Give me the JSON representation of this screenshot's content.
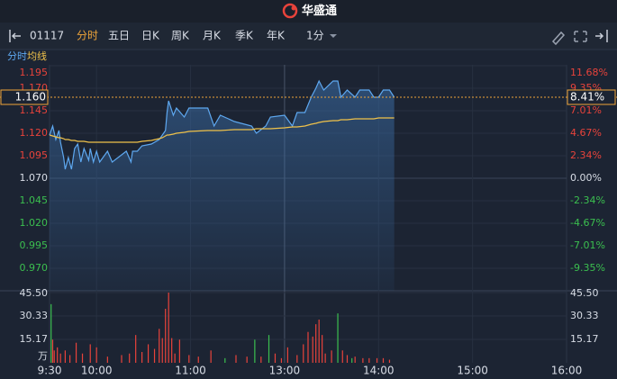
{
  "header": {
    "logo": "华盛通"
  },
  "toolbar": {
    "code": "01117",
    "tabs": [
      "分时",
      "五日",
      "日K",
      "周K",
      "月K",
      "季K",
      "年K"
    ],
    "active_tab": 0,
    "interval": "1分"
  },
  "chart_data": [
    {
      "type": "line",
      "x": [
        0,
        2,
        4,
        6,
        7,
        9,
        10,
        12,
        14,
        16,
        18,
        20,
        22,
        25,
        26,
        28,
        30,
        32,
        37,
        40,
        49,
        52,
        53,
        56,
        59,
        65,
        70,
        72,
        74,
        75,
        76,
        79,
        81,
        86,
        89,
        101,
        105,
        109,
        118,
        129,
        132,
        138,
        141,
        150,
        155,
        158,
        163,
        167,
        170,
        172,
        175,
        181,
        184,
        186,
        190,
        195,
        198,
        204,
        207,
        210,
        213,
        217,
        220
      ],
      "xlim": [
        0,
        330
      ],
      "xticks": [
        {
          "value": 0,
          "label": "9:30"
        },
        {
          "value": 30,
          "label": "10:00"
        },
        {
          "value": 90,
          "label": "11:00"
        },
        {
          "value": 150,
          "label": "13:00"
        },
        {
          "value": 210,
          "label": "14:00"
        },
        {
          "value": 270,
          "label": "15:00"
        },
        {
          "value": 330,
          "label": "16:00"
        }
      ],
      "ylim": [
        0.945,
        1.195
      ],
      "yticks": [
        {
          "value": 1.195,
          "label": "1.195"
        },
        {
          "value": 1.17,
          "label": "1.170"
        },
        {
          "value": 1.145,
          "label": "1.145"
        },
        {
          "value": 1.12,
          "label": "1.120"
        },
        {
          "value": 1.095,
          "label": "1.095"
        },
        {
          "value": 1.07,
          "label": "1.070"
        },
        {
          "value": 1.045,
          "label": "1.045"
        },
        {
          "value": 1.02,
          "label": "1.020"
        },
        {
          "value": 0.995,
          "label": "0.995"
        },
        {
          "value": 0.97,
          "label": "0.970"
        }
      ],
      "y2lim": [
        -11.68,
        11.68
      ],
      "y2ticks": [
        {
          "value": 11.68,
          "label": "11.68%"
        },
        {
          "value": 9.35,
          "label": "9.35%"
        },
        {
          "value": 7.01,
          "label": "7.01%"
        },
        {
          "value": 4.67,
          "label": "4.67%"
        },
        {
          "value": 2.34,
          "label": "2.34%"
        },
        {
          "value": 0,
          "label": "0.00%"
        },
        {
          "value": -2.34,
          "label": "-2.34%"
        },
        {
          "value": -4.67,
          "label": "-4.67%"
        },
        {
          "value": -7.01,
          "label": "-7.01%"
        },
        {
          "value": -9.35,
          "label": "-9.35%"
        }
      ],
      "grid": true,
      "last_price": {
        "value": 1.16,
        "label": "1.160"
      },
      "last_change": {
        "value": 8.41,
        "label": "8.41%"
      },
      "series": [
        {
          "name": "分时",
          "color": "#5ea8f0",
          "values": [
            1.118,
            1.128,
            1.113,
            1.123,
            1.11,
            1.093,
            1.08,
            1.093,
            1.08,
            1.103,
            1.108,
            1.088,
            1.103,
            1.09,
            1.103,
            1.088,
            1.1,
            1.088,
            1.1,
            1.088,
            1.1,
            1.088,
            1.1,
            1.1,
            1.106,
            1.108,
            1.113,
            1.118,
            1.123,
            1.143,
            1.156,
            1.14,
            1.148,
            1.138,
            1.148,
            1.148,
            1.128,
            1.14,
            1.133,
            1.128,
            1.12,
            1.128,
            1.138,
            1.14,
            1.128,
            1.143,
            1.143,
            1.16,
            1.17,
            1.178,
            1.168,
            1.178,
            1.178,
            1.16,
            1.168,
            1.16,
            1.168,
            1.168,
            1.16,
            1.16,
            1.168,
            1.168,
            1.16
          ]
        },
        {
          "name": "均线",
          "color": "#f0c24a",
          "values": [
            1.118,
            1.117,
            1.116,
            1.115,
            1.115,
            1.114,
            1.113,
            1.113,
            1.112,
            1.112,
            1.111,
            1.111,
            1.111,
            1.11,
            1.11,
            1.11,
            1.11,
            1.11,
            1.11,
            1.11,
            1.11,
            1.11,
            1.11,
            1.11,
            1.111,
            1.112,
            1.114,
            1.115,
            1.117,
            1.118,
            1.118,
            1.119,
            1.12,
            1.121,
            1.122,
            1.123,
            1.123,
            1.123,
            1.124,
            1.124,
            1.125,
            1.125,
            1.125,
            1.126,
            1.127,
            1.127,
            1.128,
            1.13,
            1.131,
            1.132,
            1.133,
            1.134,
            1.134,
            1.135,
            1.135,
            1.136,
            1.136,
            1.136,
            1.136,
            1.137,
            1.137,
            1.137,
            1.137
          ]
        }
      ]
    },
    {
      "type": "bar",
      "x": [
        1,
        2,
        3,
        5,
        7,
        10,
        13,
        17,
        21,
        26,
        30,
        37,
        46,
        51,
        55,
        59,
        63,
        67,
        70,
        72,
        74,
        76,
        78,
        80,
        83,
        89,
        95,
        103,
        112,
        119,
        126,
        131,
        135,
        140,
        144,
        148,
        152,
        158,
        162,
        165,
        168,
        170,
        172,
        174,
        176,
        180,
        184,
        187,
        190,
        193,
        195,
        200,
        204,
        209,
        213,
        217
      ],
      "xlim": [
        0,
        330
      ],
      "values": [
        38,
        15,
        8,
        10,
        6,
        8,
        5,
        13,
        6,
        12,
        10,
        4,
        5,
        6,
        18,
        7,
        12,
        9,
        22,
        16,
        35,
        45.5,
        16,
        6,
        15,
        5,
        4,
        8,
        3,
        5,
        4,
        15,
        4,
        18,
        6,
        3,
        10,
        5,
        12,
        20,
        17,
        25,
        28,
        18,
        6,
        8,
        32,
        8,
        5,
        3,
        4,
        3,
        3,
        3,
        3,
        2
      ],
      "colors": [
        "#3bbf4f",
        "#e8433b",
        "#e8433b",
        "#e8433b",
        "#e8433b",
        "#e8433b",
        "#e8433b",
        "#e8433b",
        "#e8433b",
        "#e8433b",
        "#e8433b",
        "#e8433b",
        "#e8433b",
        "#e8433b",
        "#e8433b",
        "#e8433b",
        "#e8433b",
        "#e8433b",
        "#e8433b",
        "#e8433b",
        "#e8433b",
        "#e8433b",
        "#e8433b",
        "#e8433b",
        "#e8433b",
        "#e8433b",
        "#e8433b",
        "#e8433b",
        "#3bbf4f",
        "#e8433b",
        "#e8433b",
        "#3bbf4f",
        "#e8433b",
        "#3bbf4f",
        "#e8433b",
        "#e8433b",
        "#e8433b",
        "#e8433b",
        "#e8433b",
        "#e8433b",
        "#e8433b",
        "#e8433b",
        "#e8433b",
        "#e8433b",
        "#e8433b",
        "#e8433b",
        "#3bbf4f",
        "#e8433b",
        "#e8433b",
        "#3bbf4f",
        "#e8433b",
        "#e8433b",
        "#e8433b",
        "#e8433b",
        "#e8433b",
        "#e8433b"
      ],
      "ylim": [
        0,
        45.5
      ],
      "yticks": [
        {
          "value": 45.5,
          "label": "45.50"
        },
        {
          "value": 30.33,
          "label": "30.33"
        },
        {
          "value": 15.17,
          "label": "15.17"
        }
      ],
      "unit": "万"
    }
  ]
}
